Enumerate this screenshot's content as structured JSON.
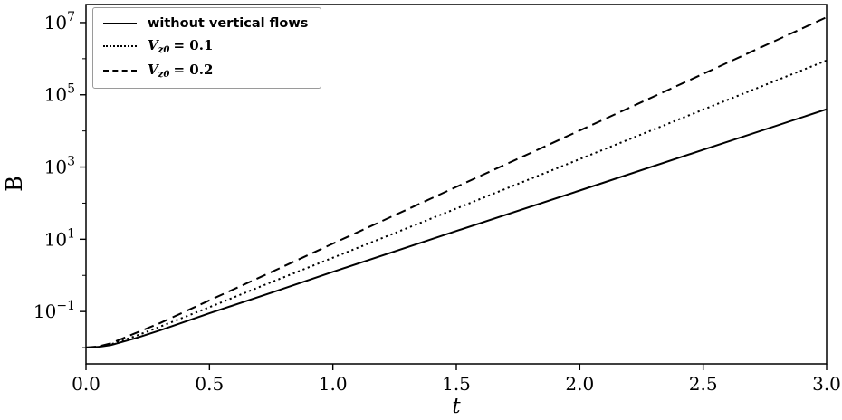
{
  "figure": {
    "xlabel": "t",
    "ylabel": "B"
  },
  "legend": {
    "items": [
      {
        "style": "solid",
        "label": "without vertical flows"
      },
      {
        "style": "dotted",
        "var": "V",
        "sub": "z0",
        "rest": "= 0.1"
      },
      {
        "style": "dashed",
        "var": "V",
        "sub": "z0",
        "rest": "= 0.2"
      }
    ]
  },
  "chart_data": {
    "type": "line",
    "title": "",
    "xlabel": "t",
    "ylabel": "B",
    "y_scale": "log",
    "xlim": [
      0.0,
      3.0
    ],
    "ylim_log10": [
      -2.45,
      7.5
    ],
    "x_ticks": [
      0.0,
      0.5,
      1.0,
      1.5,
      2.0,
      2.5,
      3.0
    ],
    "x_tick_labels": [
      "0.0",
      "0.5",
      "1.0",
      "1.5",
      "2.0",
      "2.5",
      "3.0"
    ],
    "y_tick_exponents": [
      -1,
      1,
      3,
      5,
      7
    ],
    "y_minor_exponents": [
      -2,
      0,
      2,
      4,
      6
    ],
    "grid": false,
    "legend_position": "upper left",
    "legend_labels": [
      "without vertical flows",
      "V_z0 = 0.1",
      "V_z0 = 0.2"
    ],
    "t": [
      0,
      0.05,
      0.1,
      0.2,
      0.3,
      0.5,
      0.75,
      1.0,
      1.5,
      2.0,
      2.5,
      3.0
    ],
    "series": [
      {
        "name": "without vertical flows",
        "style": "solid",
        "log10_B": [
          -2.0,
          -1.98,
          -1.93,
          -1.74,
          -1.52,
          -1.05,
          -0.48,
          0.1,
          1.23,
          2.35,
          3.48,
          4.6
        ]
      },
      {
        "name": "V_z0 = 0.1",
        "style": "dotted",
        "log10_B": [
          -2.0,
          -1.98,
          -1.91,
          -1.68,
          -1.42,
          -0.88,
          -0.19,
          0.49,
          1.85,
          3.22,
          4.59,
          5.95
        ]
      },
      {
        "name": "V_z0 = 0.2",
        "style": "dashed",
        "log10_B": [
          -2.0,
          -1.97,
          -1.88,
          -1.6,
          -1.32,
          -0.69,
          0.09,
          0.88,
          2.45,
          4.01,
          5.58,
          7.15
        ]
      }
    ]
  }
}
